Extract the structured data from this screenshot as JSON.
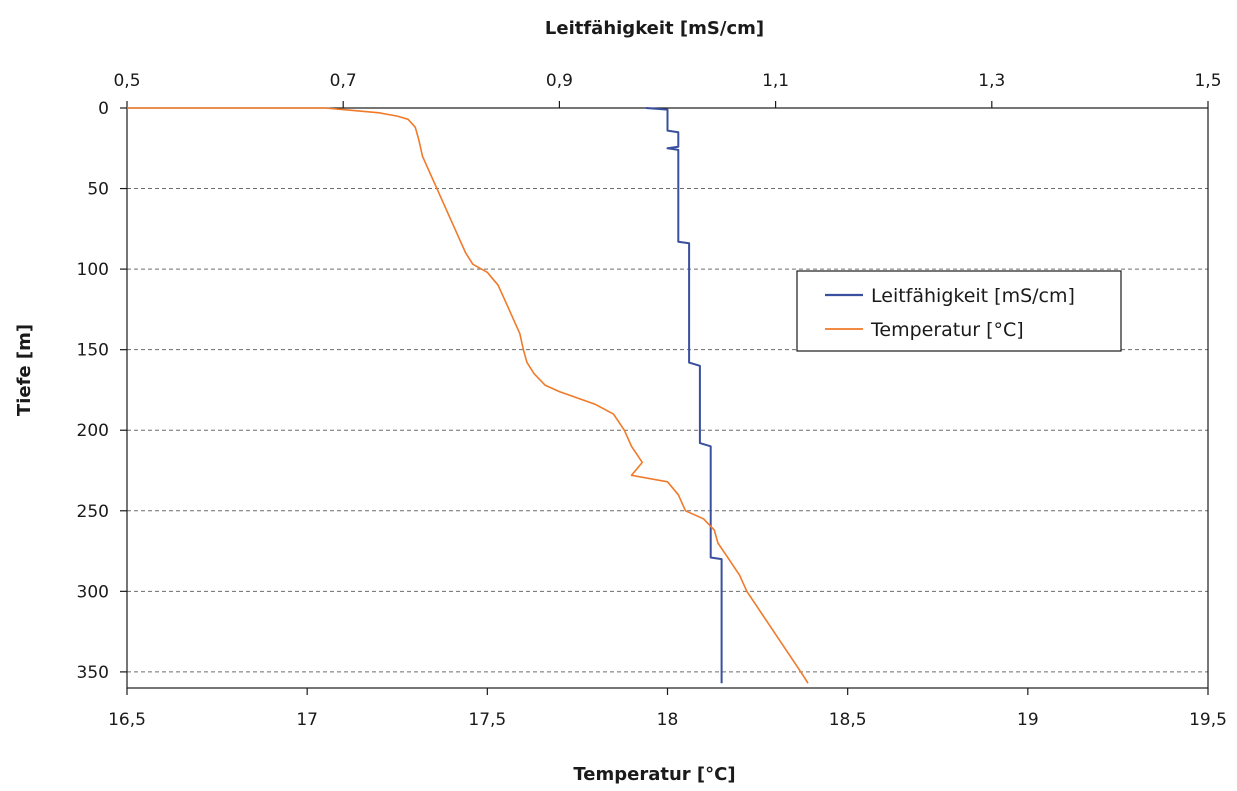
{
  "chart_data": {
    "type": "line",
    "title": "",
    "axes": {
      "top": {
        "label": "Leitfähigkeit [mS/cm]",
        "range": [
          0.5,
          1.5
        ],
        "ticks": [
          0.5,
          0.7,
          0.9,
          1.1,
          1.3,
          1.5
        ],
        "tick_labels": [
          "0,5",
          "0,7",
          "0,9",
          "1,1",
          "1,3",
          "1,5"
        ]
      },
      "bottom": {
        "label": "Temperatur [°C]",
        "range": [
          16.5,
          19.5
        ],
        "ticks": [
          16.5,
          17,
          17.5,
          18,
          18.5,
          19,
          19.5
        ],
        "tick_labels": [
          "16,5",
          "17",
          "17,5",
          "18",
          "18,5",
          "19",
          "19,5"
        ]
      },
      "left": {
        "label": "Tiefe [m]",
        "range": [
          0,
          360
        ],
        "reversed": true,
        "ticks": [
          0,
          50,
          100,
          150,
          200,
          250,
          300,
          350
        ],
        "tick_labels": [
          "0",
          "50",
          "100",
          "150",
          "200",
          "250",
          "300",
          "350"
        ]
      }
    },
    "grid": {
      "horizontal": true,
      "style": "dashed"
    },
    "legend": {
      "placement": "right, upper-middle",
      "entries": [
        "Leitfähigkeit [mS/cm]",
        "Temperatur [°C]"
      ]
    },
    "series": [
      {
        "name": "Leitfähigkeit [mS/cm]",
        "axis": "top",
        "color": "#3a4f9e",
        "points": [
          [
            0.98,
            0
          ],
          [
            1.0,
            1
          ],
          [
            1.0,
            14
          ],
          [
            1.01,
            15
          ],
          [
            1.01,
            24
          ],
          [
            1.0,
            25
          ],
          [
            1.01,
            26
          ],
          [
            1.01,
            83
          ],
          [
            1.02,
            84
          ],
          [
            1.02,
            85
          ],
          [
            1.02,
            154
          ],
          [
            1.02,
            156
          ],
          [
            1.02,
            158
          ],
          [
            1.03,
            160
          ],
          [
            1.03,
            162
          ],
          [
            1.03,
            198
          ],
          [
            1.03,
            200
          ],
          [
            1.03,
            208
          ],
          [
            1.04,
            210
          ],
          [
            1.04,
            230
          ],
          [
            1.04,
            278
          ],
          [
            1.04,
            279
          ],
          [
            1.05,
            280
          ],
          [
            1.05,
            357
          ]
        ]
      },
      {
        "name": "Temperatur [°C]",
        "axis": "bottom",
        "color": "#f07a2a",
        "points": [
          [
            16.5,
            0
          ],
          [
            17.05,
            0
          ],
          [
            17.1,
            1
          ],
          [
            17.15,
            2
          ],
          [
            17.2,
            3
          ],
          [
            17.25,
            5
          ],
          [
            17.28,
            7
          ],
          [
            17.3,
            12
          ],
          [
            17.31,
            20
          ],
          [
            17.32,
            30
          ],
          [
            17.34,
            40
          ],
          [
            17.36,
            50
          ],
          [
            17.38,
            60
          ],
          [
            17.4,
            70
          ],
          [
            17.42,
            80
          ],
          [
            17.44,
            90
          ],
          [
            17.46,
            97
          ],
          [
            17.5,
            102
          ],
          [
            17.53,
            110
          ],
          [
            17.55,
            120
          ],
          [
            17.57,
            130
          ],
          [
            17.59,
            140
          ],
          [
            17.6,
            150
          ],
          [
            17.61,
            158
          ],
          [
            17.63,
            165
          ],
          [
            17.66,
            172
          ],
          [
            17.7,
            176
          ],
          [
            17.75,
            180
          ],
          [
            17.8,
            184
          ],
          [
            17.85,
            190
          ],
          [
            17.88,
            200
          ],
          [
            17.9,
            210
          ],
          [
            17.93,
            220
          ],
          [
            17.9,
            228
          ],
          [
            18.0,
            232
          ],
          [
            18.03,
            240
          ],
          [
            18.05,
            250
          ],
          [
            18.1,
            255
          ],
          [
            18.13,
            262
          ],
          [
            18.14,
            270
          ],
          [
            18.17,
            280
          ],
          [
            18.2,
            290
          ],
          [
            18.22,
            300
          ],
          [
            18.25,
            310
          ],
          [
            18.28,
            320
          ],
          [
            18.31,
            330
          ],
          [
            18.34,
            340
          ],
          [
            18.37,
            350
          ],
          [
            18.39,
            357
          ]
        ]
      }
    ]
  }
}
